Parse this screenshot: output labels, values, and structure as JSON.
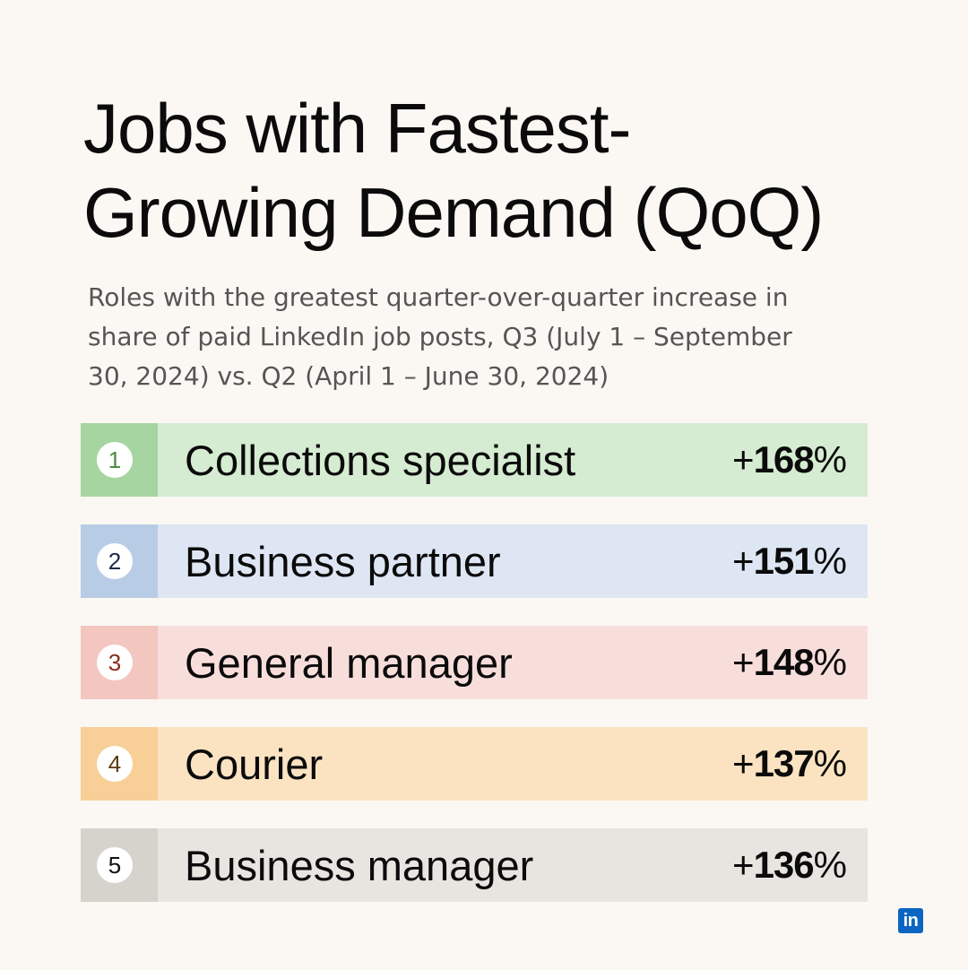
{
  "title_lines": [
    "Jobs with Fastest-",
    "Growing Demand (QoQ)"
  ],
  "subtitle_lines": [
    "Roles with the greatest quarter-over-quarter increase in",
    "share of paid LinkedIn job posts, Q3 (July 1 – September",
    "30, 2024) vs. Q2 (April 1 – June 30, 2024)"
  ],
  "chart_data": {
    "type": "table",
    "title": "Jobs with Fastest-Growing Demand (QoQ)",
    "columns": [
      "rank",
      "role",
      "increase"
    ],
    "rows": [
      {
        "rank": "1",
        "role": "Collections specialist",
        "prefix": "+",
        "value": "168",
        "unit": "%",
        "color": "#d6ecd2",
        "rank_color": "#a7d5a1",
        "rank_text_color": "#4c8a3f"
      },
      {
        "rank": "2",
        "role": "Business partner",
        "prefix": "+",
        "value": "151",
        "unit": "%",
        "color": "#dde6f2",
        "rank_color": "#b9cce5",
        "rank_text_color": "#1b2a4a"
      },
      {
        "rank": "3",
        "role": "General manager",
        "prefix": "+",
        "value": "148",
        "unit": "%",
        "color": "#f8dedb",
        "rank_color": "#f3c6c0",
        "rank_text_color": "#8a2b1e"
      },
      {
        "rank": "4",
        "role": "Courier",
        "prefix": "+",
        "value": "137",
        "unit": "%",
        "color": "#fbe3c2",
        "rank_color": "#f7cf97",
        "rank_text_color": "#5a3a10"
      },
      {
        "rank": "5",
        "role": "Business manager",
        "prefix": "+",
        "value": "136",
        "unit": "%",
        "color": "#e8e5e1",
        "rank_color": "#d6d2cc",
        "rank_text_color": "#111111"
      }
    ]
  },
  "logo": {
    "text": "in",
    "color": "#0a66c2",
    "icon": "linkedin-icon"
  }
}
